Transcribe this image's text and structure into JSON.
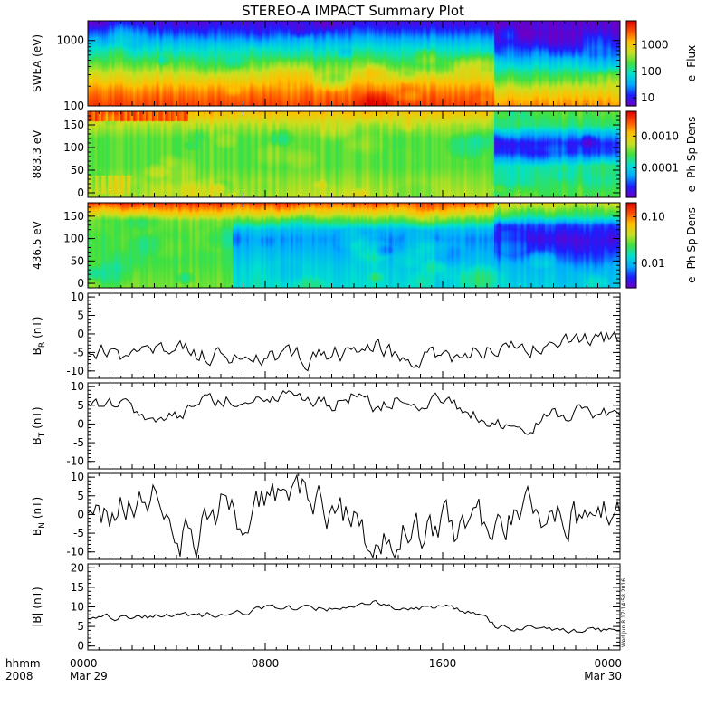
{
  "title": "STEREO-A IMPACT Summary Plot",
  "x_axis": {
    "corner_top": "hhmm",
    "corner_bottom": "2008",
    "ticks": [
      {
        "hour": 0,
        "top": "0000",
        "bottom": "Mar 29"
      },
      {
        "hour": 8,
        "top": "0800",
        "bottom": ""
      },
      {
        "hour": 16,
        "top": "1600",
        "bottom": ""
      },
      {
        "hour": 24,
        "top": "0000",
        "bottom": "Mar 30"
      }
    ]
  },
  "colorbar_palette": [
    "#6a00c8",
    "#1e1eff",
    "#00aaff",
    "#00e0d0",
    "#40e040",
    "#c8e020",
    "#ffc000",
    "#ff5000",
    "#e00000"
  ],
  "timestamp": "Wed Jun  8 17:14:58 2016",
  "chart_data": [
    {
      "type": "heatmap",
      "ylabel": "SWEA (eV)",
      "ylog": true,
      "ylim": [
        100,
        2000
      ],
      "yticks": [
        {
          "v": 100,
          "label": "100"
        },
        {
          "v": 1000,
          "label": "1000"
        }
      ],
      "colorbar": {
        "label": "e- Flux",
        "log": true,
        "range": [
          5,
          8000
        ],
        "ticks": [
          {
            "v": 10,
            "label": "10"
          },
          {
            "v": 100,
            "label": "100"
          },
          {
            "v": 1000,
            "label": "1000"
          }
        ]
      },
      "transition_hour": 18.3,
      "columns_before": [
        [
          100,
          4000
        ],
        [
          150,
          2500
        ],
        [
          250,
          900
        ],
        [
          400,
          300
        ],
        [
          600,
          120
        ],
        [
          900,
          50
        ],
        [
          1300,
          18
        ],
        [
          1800,
          8
        ]
      ],
      "columns_after": [
        [
          100,
          2000
        ],
        [
          150,
          1000
        ],
        [
          250,
          250
        ],
        [
          400,
          80
        ],
        [
          600,
          28
        ],
        [
          900,
          12
        ],
        [
          1300,
          7
        ],
        [
          1800,
          6
        ]
      ]
    },
    {
      "type": "heatmap",
      "ylabel": "883.3 eV",
      "ylim": [
        -10,
        180
      ],
      "yticks": [
        {
          "v": 0,
          "label": "0"
        },
        {
          "v": 50,
          "label": "50"
        },
        {
          "v": 100,
          "label": "100"
        },
        {
          "v": 150,
          "label": "150"
        }
      ],
      "colorbar": {
        "label": "e- Ph Sp Dens",
        "log": true,
        "range": [
          1.2e-05,
          0.006
        ],
        "ticks": [
          {
            "v": 0.0001,
            "label": "0.0001"
          },
          {
            "v": 0.001,
            "label": "0.0010"
          }
        ]
      },
      "transition_hour": 18.3,
      "rows_before": [
        [
          0,
          0.0005
        ],
        [
          30,
          0.0004
        ],
        [
          60,
          0.0003
        ],
        [
          90,
          0.0003
        ],
        [
          120,
          0.0003
        ],
        [
          150,
          0.0005
        ],
        [
          180,
          0.0012
        ]
      ],
      "rows_after": [
        [
          0,
          0.00025
        ],
        [
          30,
          0.0002
        ],
        [
          60,
          0.00015
        ],
        [
          90,
          3e-05
        ],
        [
          110,
          2.5e-05
        ],
        [
          130,
          6e-05
        ],
        [
          150,
          0.0002
        ],
        [
          180,
          0.0003
        ]
      ],
      "hot_rows": [
        [
          160,
          180,
          0,
          4.5,
          0.004
        ],
        [
          0,
          40,
          0,
          2,
          0.001
        ]
      ]
    },
    {
      "type": "heatmap",
      "ylabel": "436.5 eV",
      "ylim": [
        -10,
        180
      ],
      "yticks": [
        {
          "v": 0,
          "label": "0"
        },
        {
          "v": 50,
          "label": "50"
        },
        {
          "v": 100,
          "label": "100"
        },
        {
          "v": 150,
          "label": "150"
        }
      ],
      "colorbar": {
        "label": "e- Ph Sp Dens",
        "log": true,
        "range": [
          0.003,
          0.2
        ],
        "ticks": [
          {
            "v": 0.01,
            "label": "0.01"
          },
          {
            "v": 0.1,
            "label": "0.10"
          }
        ]
      },
      "transition_hour": 18.3,
      "rows_before_early": [
        [
          0,
          0.03
        ],
        [
          50,
          0.025
        ],
        [
          100,
          0.025
        ],
        [
          140,
          0.03
        ],
        [
          160,
          0.07
        ],
        [
          180,
          0.15
        ]
      ],
      "rows_before_late": [
        [
          0,
          0.014
        ],
        [
          40,
          0.012
        ],
        [
          80,
          0.009
        ],
        [
          100,
          0.008
        ],
        [
          120,
          0.01
        ],
        [
          150,
          0.035
        ],
        [
          180,
          0.12
        ]
      ],
      "late_start_hour": 6.5,
      "rows_after": [
        [
          0,
          0.012
        ],
        [
          40,
          0.01
        ],
        [
          70,
          0.006
        ],
        [
          100,
          0.004
        ],
        [
          130,
          0.006
        ],
        [
          150,
          0.02
        ],
        [
          180,
          0.05
        ]
      ]
    },
    {
      "type": "line",
      "ylabel": "B_R (nT)",
      "label_main": "B",
      "label_sub": "R",
      "label_unit": "(nT)",
      "ylim": [
        -12,
        11
      ],
      "yticks": [
        {
          "v": -10,
          "label": "-10"
        },
        {
          "v": -5,
          "label": "-5"
        },
        {
          "v": 0,
          "label": "0"
        },
        {
          "v": 5,
          "label": "5"
        },
        {
          "v": 10,
          "label": "10"
        }
      ],
      "x": [
        0,
        1,
        2,
        3,
        4,
        5,
        6,
        7,
        8,
        9,
        10,
        11,
        12,
        13,
        14,
        15,
        16,
        17,
        18,
        19,
        20,
        21,
        22,
        23,
        24
      ],
      "y": [
        -6,
        -5,
        -6,
        -5,
        -3,
        -6,
        -5,
        -6,
        -6,
        -6,
        -7,
        -5,
        -5,
        -2,
        -7,
        -6,
        -7,
        -6,
        -4,
        -2,
        -3,
        -2,
        -3,
        0,
        -2
      ],
      "noise": 2.5
    },
    {
      "type": "line",
      "ylabel": "B_T (nT)",
      "label_main": "B",
      "label_sub": "T",
      "label_unit": "(nT)",
      "ylim": [
        -12,
        11
      ],
      "yticks": [
        {
          "v": -10,
          "label": "-10"
        },
        {
          "v": -5,
          "label": "-5"
        },
        {
          "v": 0,
          "label": "0"
        },
        {
          "v": 5,
          "label": "5"
        },
        {
          "v": 10,
          "label": "10"
        }
      ],
      "x": [
        0,
        1,
        2,
        3,
        4,
        5,
        6,
        7,
        8,
        9,
        10,
        11,
        12,
        13,
        14,
        15,
        16,
        17,
        18,
        19,
        20,
        21,
        22,
        23,
        24
      ],
      "y": [
        4,
        5,
        4,
        1,
        2,
        5,
        7,
        7,
        6,
        9,
        7,
        5,
        8,
        4,
        7,
        6,
        6,
        4,
        1,
        -1,
        0,
        2,
        3,
        3,
        2
      ],
      "noise": 2
    },
    {
      "type": "line",
      "ylabel": "B_N (nT)",
      "label_main": "B",
      "label_sub": "N",
      "label_unit": "(nT)",
      "ylim": [
        -12,
        11
      ],
      "yticks": [
        {
          "v": -10,
          "label": "-10"
        },
        {
          "v": -5,
          "label": "-5"
        },
        {
          "v": 0,
          "label": "0"
        },
        {
          "v": 5,
          "label": "5"
        },
        {
          "v": 10,
          "label": "10"
        }
      ],
      "x": [
        0,
        1,
        2,
        3,
        4,
        5,
        6,
        7,
        8,
        9,
        10,
        11,
        12,
        13,
        14,
        15,
        16,
        17,
        18,
        19,
        20,
        21,
        22,
        23,
        24
      ],
      "y": [
        3,
        2,
        1,
        3,
        -7,
        -6,
        2,
        0,
        4,
        5,
        4,
        1,
        -3,
        -7,
        -4,
        -4,
        -3,
        -4,
        -3,
        -2,
        0,
        0,
        0,
        1,
        -2
      ],
      "noise": 6
    },
    {
      "type": "line",
      "ylabel": "|B| (nT)",
      "ylim": [
        -1,
        21
      ],
      "yticks": [
        {
          "v": 0,
          "label": "0"
        },
        {
          "v": 5,
          "label": "5"
        },
        {
          "v": 10,
          "label": "10"
        },
        {
          "v": 15,
          "label": "15"
        },
        {
          "v": 20,
          "label": "20"
        }
      ],
      "x": [
        0,
        2,
        4,
        6,
        8,
        10,
        12,
        13,
        14,
        16,
        17,
        18,
        18.5,
        20,
        22,
        24
      ],
      "y": [
        7,
        7.5,
        7.5,
        8,
        9.5,
        9.5,
        9.5,
        11,
        10,
        10,
        9,
        7,
        4.5,
        4.5,
        4,
        4
      ],
      "noise": 0.8
    }
  ]
}
